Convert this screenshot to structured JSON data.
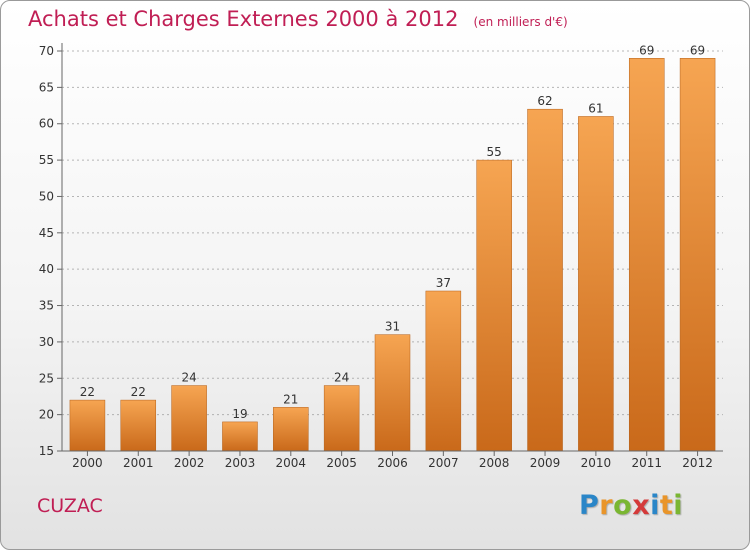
{
  "header": {
    "title": "Achats et Charges Externes 2000 à 2012",
    "unit": "(en milliers d'€)"
  },
  "footer": {
    "commune": "CUZAC",
    "logo_text": "Proxiti"
  },
  "colors": {
    "accent": "#c01e54",
    "bar_light": "#f6a552",
    "bar_dark": "#c9691a",
    "axis": "#666666",
    "grid": "#999999"
  },
  "chart_data": {
    "type": "bar",
    "title": "Achats et Charges Externes 2000 à 2012",
    "subtitle": "(en milliers d'€)",
    "categories": [
      "2000",
      "2001",
      "2002",
      "2003",
      "2004",
      "2005",
      "2006",
      "2007",
      "2008",
      "2009",
      "2010",
      "2011",
      "2012"
    ],
    "values": [
      22,
      22,
      24,
      19,
      21,
      24,
      31,
      37,
      55,
      62,
      61,
      69,
      69
    ],
    "data_labels": [
      "22",
      "22",
      "24",
      "19",
      "21",
      "24",
      "31",
      "37",
      "55",
      "62",
      "61",
      "69",
      "69"
    ],
    "yticks": [
      15,
      20,
      25,
      30,
      35,
      40,
      45,
      50,
      55,
      60,
      65,
      70
    ],
    "ytick_labels": [
      "15",
      "20",
      "25",
      "30",
      "35",
      "40",
      "45",
      "50",
      "55",
      "60",
      "65",
      "70"
    ],
    "ylim": [
      15,
      70
    ],
    "xlabel": "",
    "ylabel": "",
    "grid": "horizontal dashed",
    "legend": "none"
  }
}
